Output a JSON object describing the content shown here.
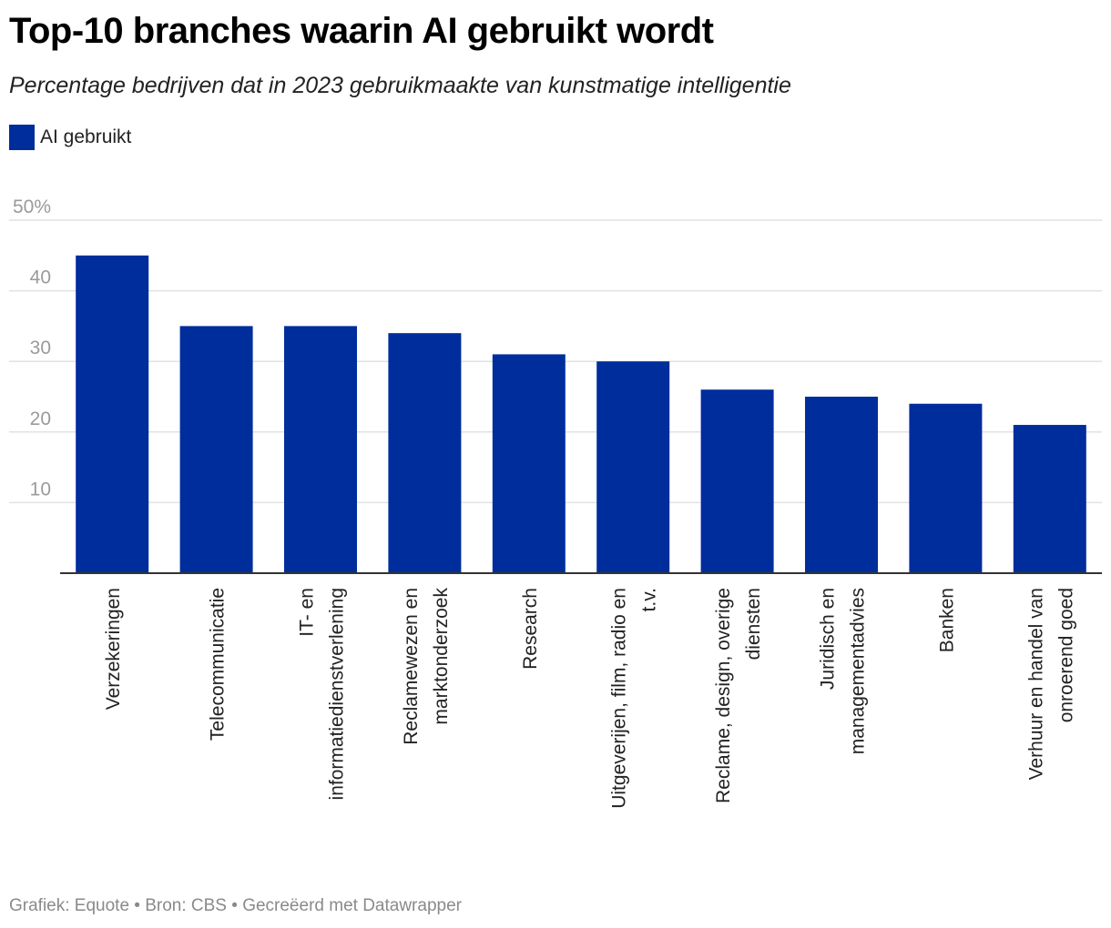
{
  "title": "Top-10 branches waarin AI gebruikt wordt",
  "subtitle": "Percentage bedrijven dat in 2023 gebruikmaakte van kunstmatige intelligentie",
  "legend": {
    "label": "AI gebruikt",
    "color": "#002d9c"
  },
  "footer": "Grafiek: Equote • Bron: CBS • Gecreëerd met Datawrapper",
  "colors": {
    "bar": "#002d9c",
    "grid": "#e2e2e2",
    "axis": "#333333",
    "tick_label": "#9a9a9a"
  },
  "chart_data": {
    "type": "bar",
    "orientation": "vertical",
    "title": "Top-10 branches waarin AI gebruikt wordt",
    "subtitle": "Percentage bedrijven dat in 2023 gebruikmaakte van kunstmatige intelligentie",
    "xlabel": "",
    "ylabel": "",
    "ylim": [
      0,
      50
    ],
    "y_ticks": [
      {
        "value": 10,
        "label": "10"
      },
      {
        "value": 20,
        "label": "20"
      },
      {
        "value": 30,
        "label": "30"
      },
      {
        "value": 40,
        "label": "40"
      },
      {
        "value": 50,
        "label": "50%"
      }
    ],
    "grid": true,
    "legend_position": "top-left",
    "categories": [
      [
        "Verzekeringen"
      ],
      [
        "Telecommunicatie"
      ],
      [
        "IT- en",
        "informatiedienstverlening"
      ],
      [
        "Reclamewezen en",
        "marktonderzoek"
      ],
      [
        "Research"
      ],
      [
        "Uitgeverijen, film, radio en",
        "t.v."
      ],
      [
        "Reclame, design, overige",
        "diensten"
      ],
      [
        "Juridisch en",
        "managementadvies"
      ],
      [
        "Banken"
      ],
      [
        "Verhuur en handel van",
        "onroerend goed"
      ]
    ],
    "series": [
      {
        "name": "AI gebruikt",
        "values": [
          45,
          35,
          35,
          34,
          31,
          30,
          26,
          25,
          24,
          21
        ]
      }
    ]
  }
}
